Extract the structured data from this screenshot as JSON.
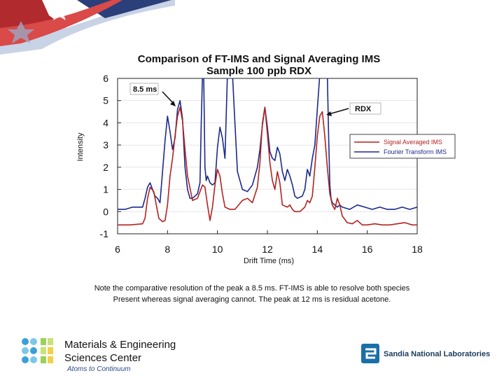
{
  "slide": {
    "caption_line1": "Note the comparative resolution of the peak a 8.5 ms. FT-IMS is able to resolve both species",
    "caption_line2": "Present whereas signal averaging cannot. The peak at 12 ms is residual acetone.",
    "org_line1": "Materials & Engineering",
    "org_line2": "Sciences Center",
    "org_tagline": "Atoms to Continuum",
    "lab_name": "Sandia National Laboratories"
  },
  "chart_data": {
    "type": "line",
    "title": "Comparison of FT-IMS and Signal Averaging IMS",
    "subtitle": "Sample 100 ppb RDX",
    "xlabel": "Drift Time (ms)",
    "ylabel": "Intensity",
    "xlim": [
      6,
      18
    ],
    "ylim": [
      -1,
      6
    ],
    "xticks": [
      6,
      8,
      10,
      12,
      14,
      16,
      18
    ],
    "yticks": [
      6,
      5,
      4,
      3,
      2,
      1,
      0,
      -1
    ],
    "legend_position": "right",
    "annotations": [
      {
        "text": "8.5 ms",
        "x": 8.4,
        "y": 5.0
      },
      {
        "text": "RDX",
        "x": 14.1,
        "y": 4.6
      }
    ],
    "series": [
      {
        "name": "Signal Averaged IMS",
        "color": "#b3221f",
        "x": [
          6.0,
          6.5,
          7.0,
          7.1,
          7.2,
          7.3,
          7.45,
          7.55,
          7.65,
          7.8,
          7.9,
          8.0,
          8.1,
          8.2,
          8.3,
          8.4,
          8.5,
          8.6,
          8.7,
          8.8,
          9.0,
          9.2,
          9.4,
          9.5,
          9.6,
          9.7,
          9.8,
          9.9,
          10.0,
          10.1,
          10.2,
          10.3,
          10.5,
          10.7,
          11.0,
          11.2,
          11.4,
          11.6,
          11.7,
          11.8,
          11.9,
          12.0,
          12.1,
          12.2,
          12.3,
          12.4,
          12.5,
          12.6,
          12.8,
          12.9,
          13.0,
          13.1,
          13.3,
          13.5,
          13.6,
          13.7,
          13.8,
          13.9,
          14.0,
          14.1,
          14.2,
          14.3,
          14.4,
          14.5,
          14.6,
          14.7,
          14.8,
          14.9,
          15.0,
          15.2,
          15.4,
          15.6,
          15.8,
          16.0,
          16.3,
          16.6,
          16.9,
          17.2,
          17.5,
          17.8,
          18.0
        ],
        "y": [
          -0.6,
          -0.6,
          -0.55,
          -0.3,
          0.6,
          1.1,
          0.9,
          0.3,
          -0.3,
          -0.45,
          -0.4,
          0.3,
          1.6,
          2.4,
          3.4,
          4.3,
          4.7,
          4.1,
          2.8,
          1.6,
          0.5,
          0.6,
          1.2,
          1.1,
          0.3,
          -0.4,
          0.2,
          1.2,
          1.9,
          1.6,
          0.8,
          0.2,
          0.1,
          0.1,
          0.5,
          0.6,
          0.4,
          1.1,
          2.2,
          4.0,
          4.7,
          3.5,
          2.2,
          1.4,
          1.0,
          1.8,
          1.3,
          0.3,
          0.2,
          0.3,
          0.1,
          0.0,
          0.0,
          0.2,
          0.5,
          0.4,
          0.7,
          2.0,
          3.4,
          4.3,
          4.5,
          3.4,
          2.0,
          0.8,
          0.3,
          0.1,
          0.6,
          0.3,
          -0.2,
          -0.5,
          -0.55,
          -0.4,
          -0.6,
          -0.6,
          -0.55,
          -0.6,
          -0.6,
          -0.55,
          -0.5,
          -0.6,
          -0.6
        ]
      },
      {
        "name": "Fourier Transform IMS",
        "color": "#1a2a8c",
        "x": [
          6.0,
          6.3,
          6.6,
          7.0,
          7.1,
          7.2,
          7.3,
          7.4,
          7.5,
          7.6,
          7.7,
          7.8,
          7.9,
          8.0,
          8.1,
          8.2,
          8.3,
          8.4,
          8.5,
          8.6,
          8.7,
          8.8,
          8.9,
          9.0,
          9.2,
          9.3,
          9.35,
          9.4,
          9.45,
          9.5,
          9.55,
          9.6,
          9.7,
          9.8,
          9.9,
          10.0,
          10.1,
          10.2,
          10.3,
          10.4,
          10.5,
          10.6,
          10.7,
          10.8,
          11.0,
          11.2,
          11.4,
          11.6,
          11.7,
          11.8,
          11.9,
          12.0,
          12.1,
          12.2,
          12.3,
          12.4,
          12.5,
          12.6,
          12.7,
          12.8,
          12.9,
          13.0,
          13.1,
          13.2,
          13.4,
          13.5,
          13.6,
          13.7,
          13.8,
          13.9,
          14.0,
          14.1,
          14.2,
          14.3,
          14.4,
          14.45,
          14.5,
          14.55,
          14.6,
          14.7,
          14.8,
          14.9,
          15.0,
          15.3,
          15.6,
          15.9,
          16.2,
          16.5,
          16.8,
          17.1,
          17.4,
          17.7,
          18.0
        ],
        "y": [
          0.1,
          0.1,
          0.2,
          0.2,
          0.6,
          1.1,
          1.3,
          1.0,
          0.7,
          0.6,
          0.4,
          1.8,
          3.2,
          4.3,
          3.6,
          2.8,
          3.3,
          4.6,
          5.0,
          4.2,
          2.0,
          1.0,
          0.6,
          0.6,
          0.8,
          1.3,
          4.0,
          6.2,
          6.2,
          2.0,
          1.4,
          1.6,
          1.3,
          1.2,
          1.3,
          2.9,
          3.8,
          3.3,
          2.4,
          6.2,
          6.2,
          6.2,
          4.0,
          1.8,
          1.0,
          0.9,
          1.2,
          2.0,
          2.8,
          3.9,
          4.7,
          3.8,
          2.7,
          2.4,
          2.3,
          2.9,
          2.6,
          1.8,
          1.4,
          1.9,
          1.6,
          1.2,
          0.7,
          0.6,
          0.7,
          1.0,
          1.9,
          1.6,
          2.4,
          3.0,
          4.6,
          6.2,
          6.2,
          6.2,
          6.2,
          3.5,
          1.2,
          0.6,
          0.4,
          0.3,
          0.2,
          0.3,
          0.2,
          0.1,
          0.3,
          0.2,
          0.1,
          0.2,
          0.1,
          0.1,
          0.2,
          0.1,
          0.2
        ]
      }
    ]
  }
}
